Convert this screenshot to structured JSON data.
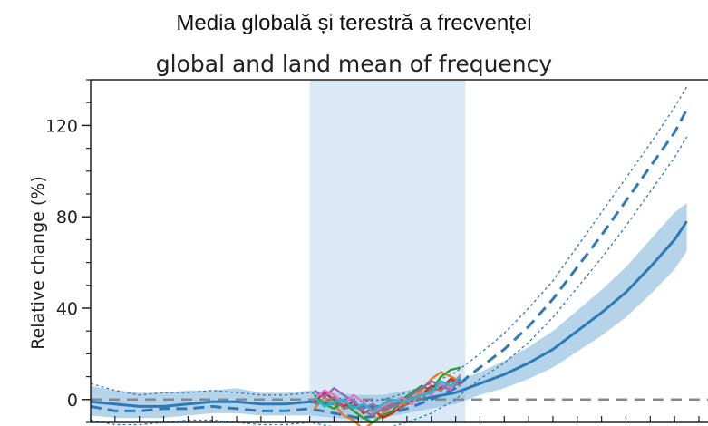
{
  "title_ro": "Media globală și terestră a frecvenței",
  "chart_data": {
    "type": "line",
    "title": "global and land mean of frequency",
    "ylabel": "Relative change (%)",
    "xlim": [
      1850,
      2100
    ],
    "ylim": [
      -10,
      140
    ],
    "y_ticks": [
      0,
      40,
      80,
      120
    ],
    "y_tick_labels": [
      "0",
      "40",
      "80",
      "120"
    ],
    "x_tick_labels": [],
    "highlight_period": [
      1940,
      2004
    ],
    "reference_line": 0,
    "series": [
      {
        "style": "solid",
        "x": [
          1850,
          1860,
          1870,
          1880,
          1890,
          1900,
          1910,
          1920,
          1930,
          1940,
          1950,
          1960,
          1970,
          1980,
          1990,
          2000,
          2005,
          2010,
          2020,
          2030,
          2040,
          2050,
          2060,
          2070,
          2080,
          2090,
          2095
        ],
        "y": [
          -1,
          -2,
          -3,
          -3,
          -2,
          -1,
          -1,
          -2,
          -2,
          -1,
          -2,
          -3,
          -3,
          -1,
          1,
          3,
          5,
          7,
          11,
          16,
          22,
          30,
          38,
          47,
          58,
          70,
          78
        ],
        "low": [
          -7,
          -8,
          -8,
          -8,
          -7,
          -6,
          -6,
          -7,
          -7,
          -7,
          -8,
          -9,
          -8,
          -6,
          -4,
          -2,
          0,
          2,
          5,
          9,
          14,
          21,
          28,
          36,
          46,
          57,
          65
        ],
        "high": [
          6,
          4,
          3,
          3,
          4,
          4,
          5,
          3,
          3,
          4,
          3,
          2,
          2,
          4,
          6,
          8,
          10,
          12,
          17,
          23,
          30,
          39,
          48,
          58,
          70,
          82,
          86
        ]
      },
      {
        "style": "dashed",
        "x": [
          1850,
          1860,
          1870,
          1880,
          1890,
          1900,
          1910,
          1920,
          1930,
          1940,
          1950,
          1960,
          1970,
          1980,
          1990,
          2000,
          2005,
          2010,
          2020,
          2030,
          2040,
          2050,
          2060,
          2070,
          2080,
          2090,
          2095
        ],
        "y": [
          -3,
          -5,
          -5,
          -4,
          -4,
          -3,
          -4,
          -5,
          -5,
          -4,
          -6,
          -8,
          -7,
          -4,
          0,
          5,
          10,
          14,
          22,
          32,
          44,
          58,
          72,
          87,
          102,
          117,
          127
        ],
        "low": [
          -9,
          -11,
          -11,
          -10,
          -9,
          -9,
          -10,
          -11,
          -11,
          -10,
          -12,
          -13,
          -13,
          -10,
          -6,
          0,
          5,
          9,
          16,
          25,
          36,
          49,
          62,
          76,
          91,
          106,
          115
        ],
        "high": [
          7,
          4,
          2,
          3,
          3,
          4,
          3,
          2,
          2,
          3,
          1,
          -1,
          0,
          3,
          7,
          12,
          16,
          20,
          29,
          40,
          52,
          67,
          82,
          97,
          112,
          128,
          137
        ]
      }
    ],
    "observations": [
      {
        "color": "#e67e22",
        "x": [
          1942,
          1946,
          1950,
          1954,
          1958,
          1962,
          1966,
          1970,
          1974,
          1978,
          1982,
          1986,
          1990,
          1994,
          1998,
          2002
        ],
        "y": [
          -4,
          1,
          -2,
          -7,
          -9,
          -13,
          -10,
          -6,
          -3,
          -2,
          0,
          4,
          9,
          12,
          10,
          8
        ]
      },
      {
        "color": "#2ca02c",
        "x": [
          1942,
          1946,
          1950,
          1954,
          1958,
          1962,
          1966,
          1970,
          1974,
          1978,
          1982,
          1986,
          1990,
          1994,
          1998,
          2002
        ],
        "y": [
          2,
          -2,
          -4,
          -1,
          -5,
          -8,
          -10,
          -7,
          -5,
          0,
          3,
          6,
          4,
          10,
          13,
          14
        ]
      },
      {
        "color": "#d62728",
        "x": [
          1942,
          1946,
          1950,
          1954,
          1958,
          1962,
          1966,
          1970,
          1974,
          1978,
          1982,
          1986,
          1990,
          1994,
          1998,
          2002
        ],
        "y": [
          -1,
          3,
          0,
          -3,
          -1,
          -6,
          -4,
          -8,
          -6,
          -3,
          -1,
          2,
          6,
          5,
          9,
          7
        ]
      },
      {
        "color": "#9467bd",
        "x": [
          1942,
          1946,
          1950,
          1954,
          1958,
          1962,
          1966,
          1970,
          1974,
          1978,
          1982,
          1986,
          1990,
          1994,
          1998,
          2002
        ],
        "y": [
          4,
          1,
          5,
          2,
          -1,
          -4,
          -2,
          -5,
          -3,
          -1,
          2,
          5,
          8,
          6,
          4,
          9
        ]
      },
      {
        "color": "#e377c2",
        "x": [
          1942,
          1946,
          1950,
          1954,
          1958,
          1962,
          1966,
          1970,
          1974,
          1978,
          1982,
          1986,
          1990,
          1994,
          1998,
          2002
        ],
        "y": [
          0,
          4,
          2,
          -2,
          2,
          -1,
          -6,
          -3,
          -1,
          1,
          -2,
          3,
          2,
          7,
          5,
          11
        ]
      },
      {
        "color": "#7f7f7f",
        "x": [
          1942,
          1946,
          1950,
          1954,
          1958,
          1962,
          1966,
          1970,
          1974,
          1978,
          1982,
          1986,
          1990,
          1994,
          1998,
          2002
        ],
        "y": [
          -2,
          -1,
          1,
          -4,
          -3,
          -5,
          -7,
          -4,
          -2,
          -4,
          1,
          0,
          5,
          4,
          8,
          6
        ]
      },
      {
        "color": "#17becf",
        "x": [
          1942,
          1946,
          1950,
          1954,
          1958,
          1962,
          1966,
          1970,
          1974,
          1978,
          1982,
          1986,
          1990,
          1994,
          1998,
          2002
        ],
        "y": [
          1,
          -3,
          -1,
          0,
          -4,
          -2,
          -5,
          -2,
          0,
          -1,
          0,
          2,
          3,
          8,
          6,
          10
        ]
      }
    ],
    "colors": {
      "main": "#2e7ab8",
      "band": "#9cc5e3",
      "highlight": "#dbe8f5",
      "reference": "#888888"
    }
  }
}
